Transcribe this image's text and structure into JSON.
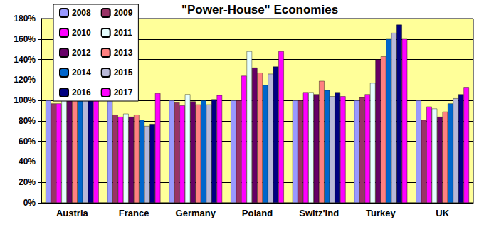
{
  "chart_data": {
    "type": "bar",
    "title": "\"Power-House\" Economies",
    "categories": [
      "Austria",
      "France",
      "Germany",
      "Poland",
      "Switz'Ind",
      "Turkey",
      "UK"
    ],
    "series": [
      {
        "name": "2008",
        "color": "#9999FF",
        "values": [
          100,
          100,
          100,
          100,
          100,
          100,
          100
        ]
      },
      {
        "name": "2009",
        "color": "#993366",
        "values": [
          97,
          86,
          98,
          100,
          100,
          103,
          81
        ]
      },
      {
        "name": "2010",
        "color": "#FF00FF",
        "values": [
          97,
          84,
          95,
          124,
          108,
          106,
          94
        ]
      },
      {
        "name": "2011",
        "color": "#E6FFFF",
        "values": [
          100,
          87,
          106,
          148,
          108,
          117,
          92
        ]
      },
      {
        "name": "2012",
        "color": "#660066",
        "values": [
          100,
          84,
          99,
          132,
          106,
          140,
          84
        ]
      },
      {
        "name": "2013",
        "color": "#FF8080",
        "values": [
          102,
          86,
          96,
          127,
          119,
          143,
          89
        ]
      },
      {
        "name": "2014",
        "color": "#0066CC",
        "values": [
          102,
          81,
          100,
          115,
          110,
          160,
          97
        ]
      },
      {
        "name": "2015",
        "color": "#B8B8D8",
        "values": [
          102,
          75,
          96,
          126,
          104,
          166,
          102
        ]
      },
      {
        "name": "2016",
        "color": "#000080",
        "values": [
          102,
          77,
          101,
          133,
          108,
          174,
          106
        ]
      },
      {
        "name": "2017",
        "color": "#FF00FF",
        "values": [
          103,
          107,
          105,
          148,
          104,
          160,
          113
        ]
      }
    ],
    "ylim": [
      0,
      180
    ],
    "yticks": [
      {
        "value": 0,
        "label": "0%"
      },
      {
        "value": 20,
        "label": "20%"
      },
      {
        "value": 40,
        "label": "40%"
      },
      {
        "value": 60,
        "label": "60%"
      },
      {
        "value": 80,
        "label": "80%"
      },
      {
        "value": 100,
        "label": "100%"
      },
      {
        "value": 120,
        "label": "120%"
      },
      {
        "value": 140,
        "label": "140%"
      },
      {
        "value": 160,
        "label": "160%"
      },
      {
        "value": 180,
        "label": "180%"
      }
    ],
    "grid": true,
    "legend": "upper left"
  }
}
